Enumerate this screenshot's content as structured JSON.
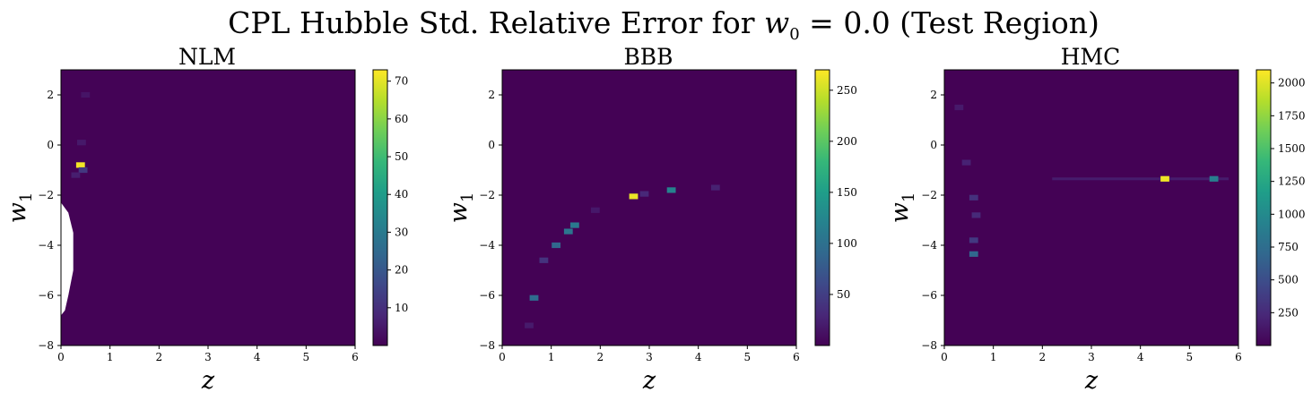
{
  "figure": {
    "title_prefix": "CPL Hubble Std. Relative Error for ",
    "title_var": "w",
    "title_sub": "0",
    "title_suffix": " = 0.0 (Test Region)"
  },
  "colormap": "viridis",
  "chart_data": [
    {
      "type": "heatmap",
      "title": "NLM",
      "xlabel": "z",
      "ylabel_var": "w",
      "ylabel_sub": "1",
      "xlim": [
        0,
        6
      ],
      "ylim": [
        -8,
        3
      ],
      "x_ticks": [
        "0",
        "1",
        "2",
        "3",
        "4",
        "5",
        "6"
      ],
      "y_ticks": [
        "2",
        "0",
        "−2",
        "−4",
        "−6",
        "−8"
      ],
      "y_tick_values": [
        2,
        0,
        -2,
        -4,
        -6,
        -8
      ],
      "colorbar_range": [
        0,
        73
      ],
      "colorbar_ticks": [
        "10",
        "20",
        "30",
        "40",
        "50",
        "60",
        "70"
      ],
      "colorbar_tick_values": [
        10,
        20,
        30,
        40,
        50,
        60,
        70
      ],
      "background_value": 0.5,
      "missing_region": [
        [
          0,
          -2.3
        ],
        [
          0.15,
          -2.7
        ],
        [
          0.25,
          -3.5
        ],
        [
          0.25,
          -5.0
        ],
        [
          0.15,
          -6.0
        ],
        [
          0.08,
          -6.6
        ],
        [
          0,
          -6.8
        ]
      ],
      "hotspots": [
        {
          "z": 0.4,
          "w1": -0.8,
          "value": 72
        },
        {
          "z": 0.45,
          "w1": -1.0,
          "value": 12
        },
        {
          "z": 0.3,
          "w1": -1.2,
          "value": 6
        },
        {
          "z": 0.42,
          "w1": 0.1,
          "value": 5
        },
        {
          "z": 0.5,
          "w1": 2.0,
          "value": 4
        }
      ]
    },
    {
      "type": "heatmap",
      "title": "BBB",
      "xlabel": "z",
      "ylabel_var": "w",
      "ylabel_sub": "1",
      "xlim": [
        0,
        6
      ],
      "ylim": [
        -8,
        3
      ],
      "x_ticks": [
        "0",
        "1",
        "2",
        "3",
        "4",
        "5",
        "6"
      ],
      "y_ticks": [
        "2",
        "0",
        "−2",
        "−4",
        "−6",
        "−8"
      ],
      "y_tick_values": [
        2,
        0,
        -2,
        -4,
        -6,
        -8
      ],
      "colorbar_range": [
        0,
        270
      ],
      "colorbar_ticks": [
        "50",
        "100",
        "150",
        "200",
        "250"
      ],
      "colorbar_tick_values": [
        50,
        100,
        150,
        200,
        250
      ],
      "background_value": 1,
      "hotspots": [
        {
          "z": 2.68,
          "w1": -2.05,
          "value": 262
        },
        {
          "z": 3.45,
          "w1": -1.8,
          "value": 120
        },
        {
          "z": 1.48,
          "w1": -3.2,
          "value": 110
        },
        {
          "z": 1.35,
          "w1": -3.45,
          "value": 105
        },
        {
          "z": 1.1,
          "w1": -4.0,
          "value": 90
        },
        {
          "z": 0.65,
          "w1": -6.1,
          "value": 95
        },
        {
          "z": 0.85,
          "w1": -4.6,
          "value": 40
        },
        {
          "z": 2.9,
          "w1": -1.95,
          "value": 30
        },
        {
          "z": 4.35,
          "w1": -1.7,
          "value": 25
        },
        {
          "z": 0.55,
          "w1": -7.2,
          "value": 20
        },
        {
          "z": 1.9,
          "w1": -2.6,
          "value": 18
        }
      ]
    },
    {
      "type": "heatmap",
      "title": "HMC",
      "xlabel": "z",
      "ylabel_var": "w",
      "ylabel_sub": "1",
      "xlim": [
        0,
        6
      ],
      "ylim": [
        -8,
        3
      ],
      "x_ticks": [
        "0",
        "1",
        "2",
        "3",
        "4",
        "5",
        "6"
      ],
      "y_ticks": [
        "2",
        "0",
        "−2",
        "−4",
        "−6",
        "−8"
      ],
      "y_tick_values": [
        2,
        0,
        -2,
        -4,
        -6,
        -8
      ],
      "colorbar_range": [
        0,
        2100
      ],
      "colorbar_ticks": [
        "250",
        "500",
        "750",
        "1000",
        "1250",
        "1500",
        "1750",
        "2000"
      ],
      "colorbar_tick_values": [
        250,
        500,
        750,
        1000,
        1250,
        1500,
        1750,
        2000
      ],
      "background_value": 5,
      "hotspots": [
        {
          "z": 4.5,
          "w1": -1.35,
          "value": 2050
        },
        {
          "z": 5.5,
          "w1": -1.35,
          "value": 900
        },
        {
          "z": 0.6,
          "w1": -4.35,
          "value": 700
        },
        {
          "z": 0.6,
          "w1": -2.1,
          "value": 300
        },
        {
          "z": 0.65,
          "w1": -2.8,
          "value": 250
        },
        {
          "z": 0.6,
          "w1": -3.8,
          "value": 350
        },
        {
          "z": 0.45,
          "w1": -0.7,
          "value": 200
        },
        {
          "z": 0.3,
          "w1": 1.5,
          "value": 150
        }
      ],
      "ridge": {
        "w1": -1.35,
        "z_from": 2.2,
        "z_to": 5.8,
        "value": 180
      }
    }
  ]
}
